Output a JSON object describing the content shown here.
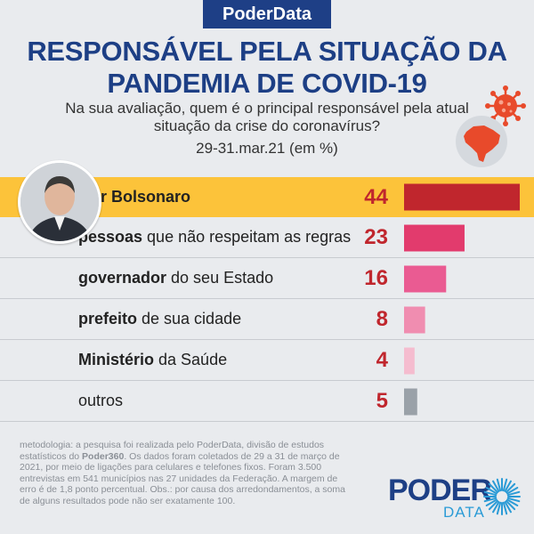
{
  "header": {
    "badge": "PoderData",
    "title_line1": "RESPONSÁVEL PELA SITUAÇÃO DA",
    "title_line2": "PANDEMIA DE COVID-19",
    "subtitle": "Na sua avaliação, quem é o principal responsável pela atual situação da crise do coronavírus?",
    "date": "29-31.mar.21 (em %)"
  },
  "chart_data": {
    "type": "bar",
    "orientation": "horizontal",
    "categories": [
      {
        "bold": "Jair Bolsonaro",
        "rest": ""
      },
      {
        "bold": "pessoas",
        "rest": " que não respeitam as regras"
      },
      {
        "bold": "governador",
        "rest": " do seu Estado"
      },
      {
        "bold": "prefeito",
        "rest": " de sua cidade"
      },
      {
        "bold": "Ministério",
        "rest": " da Saúde"
      },
      {
        "bold": "",
        "rest": "outros"
      }
    ],
    "values": [
      44,
      23,
      16,
      8,
      4,
      5
    ],
    "colors": [
      "#c0262d",
      "#e23b6d",
      "#ea5b92",
      "#f08db0",
      "#f5bccf",
      "#9aa1a8"
    ],
    "highlight_index": 0,
    "highlight_color": "#fcc33a",
    "xlim": [
      0,
      44
    ]
  },
  "footer": {
    "methodology_pre": "metodologia: a pesquisa foi realizada pelo PoderData, divisão de estudos estatísticos do ",
    "methodology_bold": "Poder360",
    "methodology_post": ". Os dados foram coletados de 29 a 31 de março de 2021, por meio de ligações para celulares e telefones fixos. Foram 3.500 entrevistas em 541 municípios nas 27 unidades da Federação. A margem de erro é de 1,8 ponto percentual. Obs.: por causa dos arredondamentos, a soma de alguns resultados pode não ser exatamente 100.",
    "logo_main": "PODER",
    "logo_sub": "DATA"
  }
}
